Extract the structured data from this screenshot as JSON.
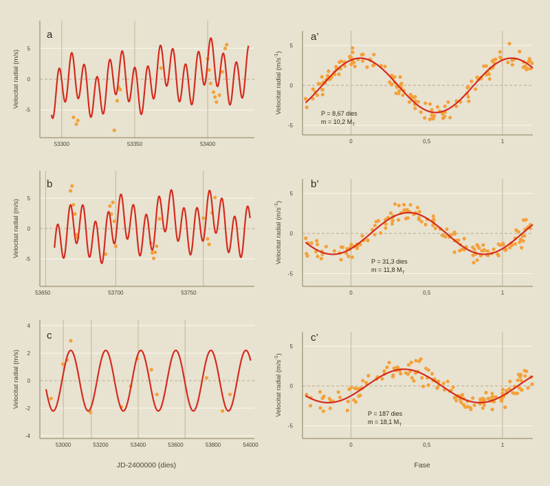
{
  "figure": {
    "background": "#e8e2d0",
    "curve_color": "#d42a1e",
    "point_color": "#f3a13a",
    "grid_color": "#fbf8ef",
    "frame_color": "#8a7f5e",
    "marker_color": "#bfb69a",
    "zero_line_color": "#b6ab8c",
    "xlabel_left": "JD-2400000 (dies)",
    "xlabel_right": "Fase"
  },
  "chart_data": [
    {
      "id": "a",
      "type": "line",
      "panel_label": "a",
      "ylabel": "Velocitat radial (m/s)",
      "xlim": [
        53285,
        53432
      ],
      "ylim": [
        -9.5,
        9.5
      ],
      "xticks": [
        53300,
        53350,
        53400
      ],
      "yticks": [
        -5,
        0,
        5
      ],
      "xtick_labels": [
        "53300",
        "53350",
        "53400"
      ],
      "ytick_labels": [
        "-5",
        "0",
        "5"
      ],
      "markers": [
        53300,
        53350,
        53400
      ],
      "model": {
        "amp1": 3.5,
        "period1": 8.67,
        "phase1": 53296.0,
        "amp2": 2.0,
        "period2": 31.3,
        "phase2": 53300.0,
        "amp3": 1.2,
        "period3": 187,
        "phase3": 53360,
        "x0": 53293,
        "x1": 53428
      },
      "points": [
        {
          "x": 53308,
          "y": -6.2
        },
        {
          "x": 53310,
          "y": -7.3
        },
        {
          "x": 53311,
          "y": -6.7
        },
        {
          "x": 53336,
          "y": -8.3
        },
        {
          "x": 53338,
          "y": -3.5
        },
        {
          "x": 53339,
          "y": -1.3
        },
        {
          "x": 53340,
          "y": -1.7
        },
        {
          "x": 53368,
          "y": 1.8
        },
        {
          "x": 53400,
          "y": 3.3
        },
        {
          "x": 53401,
          "y": 1.5
        },
        {
          "x": 53402,
          "y": -0.7
        },
        {
          "x": 53404,
          "y": -2.1
        },
        {
          "x": 53405,
          "y": -2.9
        },
        {
          "x": 53406,
          "y": -3.7
        },
        {
          "x": 53408,
          "y": -2.6
        },
        {
          "x": 53410,
          "y": 1.2
        },
        {
          "x": 53412,
          "y": 5.0
        },
        {
          "x": 53413,
          "y": 5.6
        }
      ]
    },
    {
      "id": "b",
      "type": "line",
      "panel_label": "b",
      "ylabel": "Velocitat radial (m/s)",
      "xlim": [
        53648,
        53795
      ],
      "ylim": [
        -9.5,
        9.5
      ],
      "xticks": [
        53650,
        53700,
        53750
      ],
      "yticks": [
        -5,
        0,
        5
      ],
      "xtick_labels": [
        "53650",
        "53700",
        "53750"
      ],
      "ytick_labels": [
        "-5",
        "0",
        "5"
      ],
      "markers": [
        53652,
        53700,
        53760
      ],
      "model": {
        "amp1": 3.5,
        "period1": 8.67,
        "phase1": 53658.0,
        "amp2": 2.0,
        "period2": 31.3,
        "phase2": 53665.0,
        "amp3": 1.2,
        "period3": 187,
        "phase3": 53700,
        "x0": 53658,
        "x1": 53792
      },
      "points": [
        {
          "x": 53669,
          "y": 6.2
        },
        {
          "x": 53670,
          "y": 7.0
        },
        {
          "x": 53671,
          "y": 3.9
        },
        {
          "x": 53672,
          "y": 2.4
        },
        {
          "x": 53673,
          "y": -1.0
        },
        {
          "x": 53674,
          "y": -1.5
        },
        {
          "x": 53693,
          "y": -4.2
        },
        {
          "x": 53696,
          "y": 3.7
        },
        {
          "x": 53697,
          "y": 2.4
        },
        {
          "x": 53698,
          "y": 4.3
        },
        {
          "x": 53699,
          "y": 1.2
        },
        {
          "x": 53700,
          "y": -2.9
        },
        {
          "x": 53724,
          "y": -2.4
        },
        {
          "x": 53725,
          "y": -4.0
        },
        {
          "x": 53726,
          "y": -4.9
        },
        {
          "x": 53727,
          "y": -3.9
        },
        {
          "x": 53728,
          "y": -2.9
        },
        {
          "x": 53730,
          "y": 1.6
        },
        {
          "x": 53760,
          "y": 1.7
        },
        {
          "x": 53763,
          "y": -1.7
        },
        {
          "x": 53764,
          "y": -2.6
        },
        {
          "x": 53766,
          "y": 2.6
        },
        {
          "x": 53768,
          "y": 5.1
        }
      ]
    },
    {
      "id": "c",
      "type": "line",
      "panel_label": "c",
      "ylabel": "Velocitat radial (m/s)",
      "xlim": [
        52875,
        54020
      ],
      "ylim": [
        -4.2,
        4.4
      ],
      "xticks": [
        53000,
        53200,
        53400,
        53600,
        53800,
        54000
      ],
      "yticks": [
        -4,
        -2,
        0,
        2,
        4
      ],
      "xtick_labels": [
        "53000",
        "53200",
        "53400",
        "53600",
        "53800",
        "54000"
      ],
      "ytick_labels": [
        "-4",
        "-2",
        "0",
        "2",
        "4"
      ],
      "markers": [
        53000,
        53150,
        53400,
        53650
      ],
      "model": {
        "amp1": 2.2,
        "period1": 187,
        "phase1": 52993,
        "x0": 52908,
        "x1": 54000
      },
      "points": [
        {
          "x": 52935,
          "y": -1.3
        },
        {
          "x": 52998,
          "y": 1.2
        },
        {
          "x": 53020,
          "y": 1.5
        },
        {
          "x": 53040,
          "y": 2.9
        },
        {
          "x": 53145,
          "y": -2.3
        },
        {
          "x": 53310,
          "y": -1.9
        },
        {
          "x": 53360,
          "y": -0.4
        },
        {
          "x": 53395,
          "y": 1.6
        },
        {
          "x": 53470,
          "y": 0.8
        },
        {
          "x": 53500,
          "y": -1.0
        },
        {
          "x": 53765,
          "y": 0.2
        },
        {
          "x": 53850,
          "y": -2.2
        },
        {
          "x": 53890,
          "y": -1.0
        }
      ]
    },
    {
      "id": "a2",
      "type": "line",
      "panel_label": "a’",
      "ylabel": "Velocitat radial (m/s",
      "ylabel_sup": "-1",
      "ylabel_end": ")",
      "xlim": [
        -0.32,
        1.2
      ],
      "ylim": [
        -6.2,
        6.8
      ],
      "xticks": [
        0,
        0.5,
        1
      ],
      "yticks": [
        -5,
        0,
        5
      ],
      "xtick_labels": [
        "0",
        "0,5",
        "1"
      ],
      "ytick_labels": [
        "-5",
        "0",
        "5"
      ],
      "markers": [
        0,
        1
      ],
      "annotation_line1": "P = 8,67 dies",
      "annotation_line2": "m = 10,2 M",
      "annotation_sub": "T",
      "model": {
        "type": "sine",
        "amp": 3.4,
        "peak": 0.06,
        "x0": -0.3,
        "x1": 1.2
      }
    },
    {
      "id": "b2",
      "type": "line",
      "panel_label": "b’",
      "ylabel": "Velocitat radial (m/s",
      "ylabel_sup": "-1",
      "ylabel_end": ")",
      "xlim": [
        -0.32,
        1.2
      ],
      "ylim": [
        -6.6,
        6.8
      ],
      "xticks": [
        0,
        0.5,
        1
      ],
      "yticks": [
        -5,
        0,
        5
      ],
      "xtick_labels": [
        "0",
        "0,5",
        "1"
      ],
      "ytick_labels": [
        "-5",
        "0",
        "5"
      ],
      "markers": [
        0,
        1
      ],
      "annotation_line1": "P = 31,3 dies",
      "annotation_line2": "m = 11,8 M",
      "annotation_sub": "T",
      "model": {
        "type": "sine",
        "amp": 2.6,
        "peak": 0.38,
        "x0": -0.3,
        "x1": 1.2
      }
    },
    {
      "id": "c2",
      "type": "line",
      "panel_label": "c’",
      "ylabel": "Velocitat radial (m/s",
      "ylabel_sup": "-1",
      "ylabel_end": ")",
      "xlim": [
        -0.32,
        1.2
      ],
      "ylim": [
        -6.6,
        6.8
      ],
      "xticks": [
        0,
        0.5,
        1
      ],
      "yticks": [
        -5,
        0,
        5
      ],
      "xtick_labels": [
        "0",
        "0,5",
        "1"
      ],
      "ytick_labels": [
        "-5",
        "0",
        "5"
      ],
      "markers": [
        0,
        1
      ],
      "annotation_line1": "P = 187 dies",
      "annotation_line2": "m = 18,1 M",
      "annotation_sub": "T",
      "model": {
        "type": "sine",
        "amp": 2.1,
        "peak": 0.35,
        "x0": -0.3,
        "x1": 1.2
      }
    }
  ]
}
